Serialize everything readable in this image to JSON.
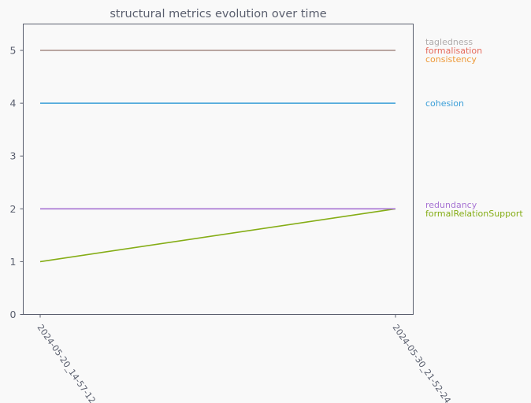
{
  "chart_data": {
    "type": "line",
    "title": "structural metrics evolution over time",
    "xlabel": "",
    "ylabel": "",
    "categories": [
      "2024-05-20_14-57-12",
      "2024-05-30_21-52-24"
    ],
    "ylim": [
      0,
      5.5
    ],
    "yticks": [
      0,
      1,
      2,
      3,
      4,
      5
    ],
    "grid": false,
    "legend": "right",
    "series": [
      {
        "name": "tagledness",
        "values": [
          5,
          5
        ],
        "color": "#b0acac"
      },
      {
        "name": "formalisation",
        "values": [
          5,
          5
        ],
        "color": "#e56b5d"
      },
      {
        "name": "consistency",
        "values": [
          5,
          5
        ],
        "color": "#ee9a3a"
      },
      {
        "name": "cohesion",
        "values": [
          4,
          4
        ],
        "color": "#3a9ed8"
      },
      {
        "name": "redundancy",
        "values": [
          2,
          2
        ],
        "color": "#a774d3"
      },
      {
        "name": "formalRelationSupport",
        "values": [
          1,
          2
        ],
        "color": "#85ad16"
      }
    ]
  }
}
